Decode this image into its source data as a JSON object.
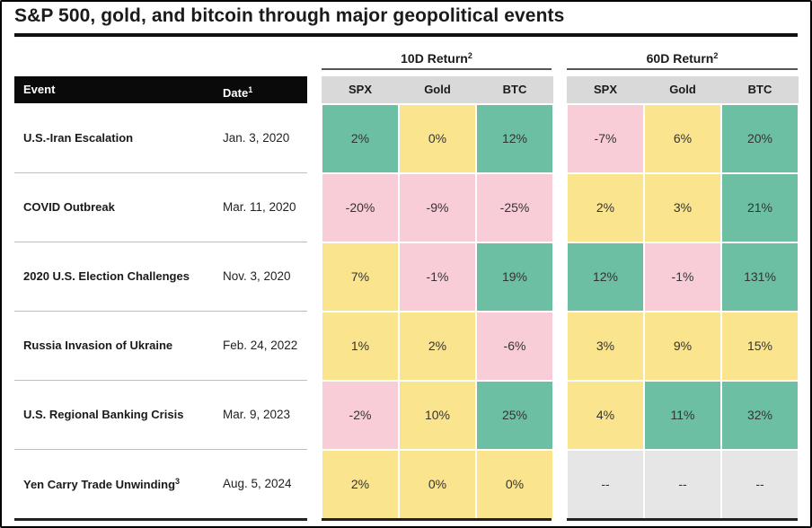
{
  "title": "S&P 500, gold, and bitcoin through major geopolitical events",
  "groups": [
    {
      "label": "10D Return",
      "sup": "2"
    },
    {
      "label": "60D Return",
      "sup": "2"
    }
  ],
  "header": {
    "event": "Event",
    "date": "Date",
    "date_sup": "1"
  },
  "columns": [
    "SPX",
    "Gold",
    "BTC",
    "SPX",
    "Gold",
    "BTC"
  ],
  "colors": {
    "green": "#6cbfa2",
    "yellow": "#fbe48e",
    "pink": "#f9cdd8",
    "gray": "#e6e6e6",
    "header_gray": "#d9d9d9",
    "black": "#0a0a0a"
  },
  "chart_data": {
    "type": "table",
    "title": "S&P 500, gold, and bitcoin through major geopolitical events",
    "columns": [
      "Event",
      "Date",
      "10D Return SPX",
      "10D Return Gold",
      "10D Return BTC",
      "60D Return SPX",
      "60D Return Gold",
      "60D Return BTC"
    ],
    "rows": [
      {
        "event": "U.S.-Iran Escalation",
        "event_sup": "",
        "date": "Jan. 3, 2020",
        "cells": [
          {
            "v": "2%",
            "c": "green"
          },
          {
            "v": "0%",
            "c": "yellow"
          },
          {
            "v": "12%",
            "c": "green"
          },
          {
            "v": "-7%",
            "c": "pink"
          },
          {
            "v": "6%",
            "c": "yellow"
          },
          {
            "v": "20%",
            "c": "green"
          }
        ]
      },
      {
        "event": "COVID Outbreak",
        "event_sup": "",
        "date": "Mar. 11, 2020",
        "cells": [
          {
            "v": "-20%",
            "c": "pink"
          },
          {
            "v": "-9%",
            "c": "pink"
          },
          {
            "v": "-25%",
            "c": "pink"
          },
          {
            "v": "2%",
            "c": "yellow"
          },
          {
            "v": "3%",
            "c": "yellow"
          },
          {
            "v": "21%",
            "c": "green"
          }
        ]
      },
      {
        "event": "2020 U.S. Election Challenges",
        "event_sup": "",
        "date": "Nov. 3, 2020",
        "cells": [
          {
            "v": "7%",
            "c": "yellow"
          },
          {
            "v": "-1%",
            "c": "pink"
          },
          {
            "v": "19%",
            "c": "green"
          },
          {
            "v": "12%",
            "c": "green"
          },
          {
            "v": "-1%",
            "c": "pink"
          },
          {
            "v": "131%",
            "c": "green"
          }
        ]
      },
      {
        "event": "Russia Invasion of Ukraine",
        "event_sup": "",
        "date": "Feb. 24, 2022",
        "cells": [
          {
            "v": "1%",
            "c": "yellow"
          },
          {
            "v": "2%",
            "c": "yellow"
          },
          {
            "v": "-6%",
            "c": "pink"
          },
          {
            "v": "3%",
            "c": "yellow"
          },
          {
            "v": "9%",
            "c": "yellow"
          },
          {
            "v": "15%",
            "c": "yellow"
          }
        ]
      },
      {
        "event": "U.S. Regional Banking Crisis",
        "event_sup": "",
        "date": "Mar. 9, 2023",
        "cells": [
          {
            "v": "-2%",
            "c": "pink"
          },
          {
            "v": "10%",
            "c": "yellow"
          },
          {
            "v": "25%",
            "c": "green"
          },
          {
            "v": "4%",
            "c": "yellow"
          },
          {
            "v": "11%",
            "c": "green"
          },
          {
            "v": "32%",
            "c": "green"
          }
        ]
      },
      {
        "event": "Yen Carry Trade Unwinding",
        "event_sup": "3",
        "date": "Aug. 5, 2024",
        "cells": [
          {
            "v": "2%",
            "c": "yellow"
          },
          {
            "v": "0%",
            "c": "yellow"
          },
          {
            "v": "0%",
            "c": "yellow"
          },
          {
            "v": "--",
            "c": "gray"
          },
          {
            "v": "--",
            "c": "gray"
          },
          {
            "v": "--",
            "c": "gray"
          }
        ]
      }
    ]
  }
}
